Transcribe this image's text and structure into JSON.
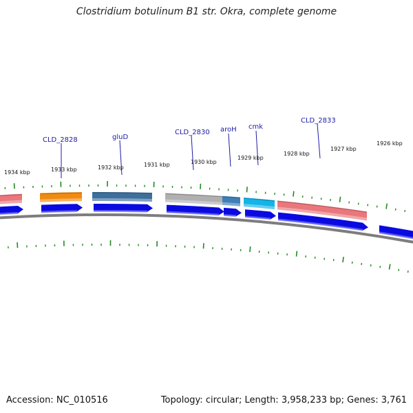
{
  "title": "Clostridium botulinum B1 str. Okra, complete genome",
  "footer": {
    "accession_label": "Accession:",
    "accession": "NC_010516",
    "topology_label": "Topology:",
    "topology": "circular",
    "length_label": "Length:",
    "length": "3,958,233 bp",
    "genes_label": "Genes:",
    "genes": "3,761"
  },
  "colors": {
    "background": "#ffffff",
    "backbone": "#7d7d7d",
    "tick": "#1f8a1f",
    "label_line": "#1a1aa6",
    "cds_arrow": "#0a0ae0"
  },
  "scale_labels": [
    "1934 kbp",
    "1933 kbp",
    "1932 kbp",
    "1931 kbp",
    "1930 kbp",
    "1929 kbp",
    "1928 kbp",
    "1927 kbp",
    "1926 kbp"
  ],
  "genes": [
    {
      "name": "",
      "color": "#e9777c"
    },
    {
      "name": "CLD_2828",
      "color": "#f08a10"
    },
    {
      "name": "gluD",
      "color": "#3e6f9c"
    },
    {
      "name": "CLD_2830",
      "color": "#b0b0b0"
    },
    {
      "name": "aroH",
      "color": "#3f7fb6"
    },
    {
      "name": "cmk",
      "color": "#14b4e8"
    },
    {
      "name": "CLD_2833",
      "color": "#e9777c"
    }
  ]
}
